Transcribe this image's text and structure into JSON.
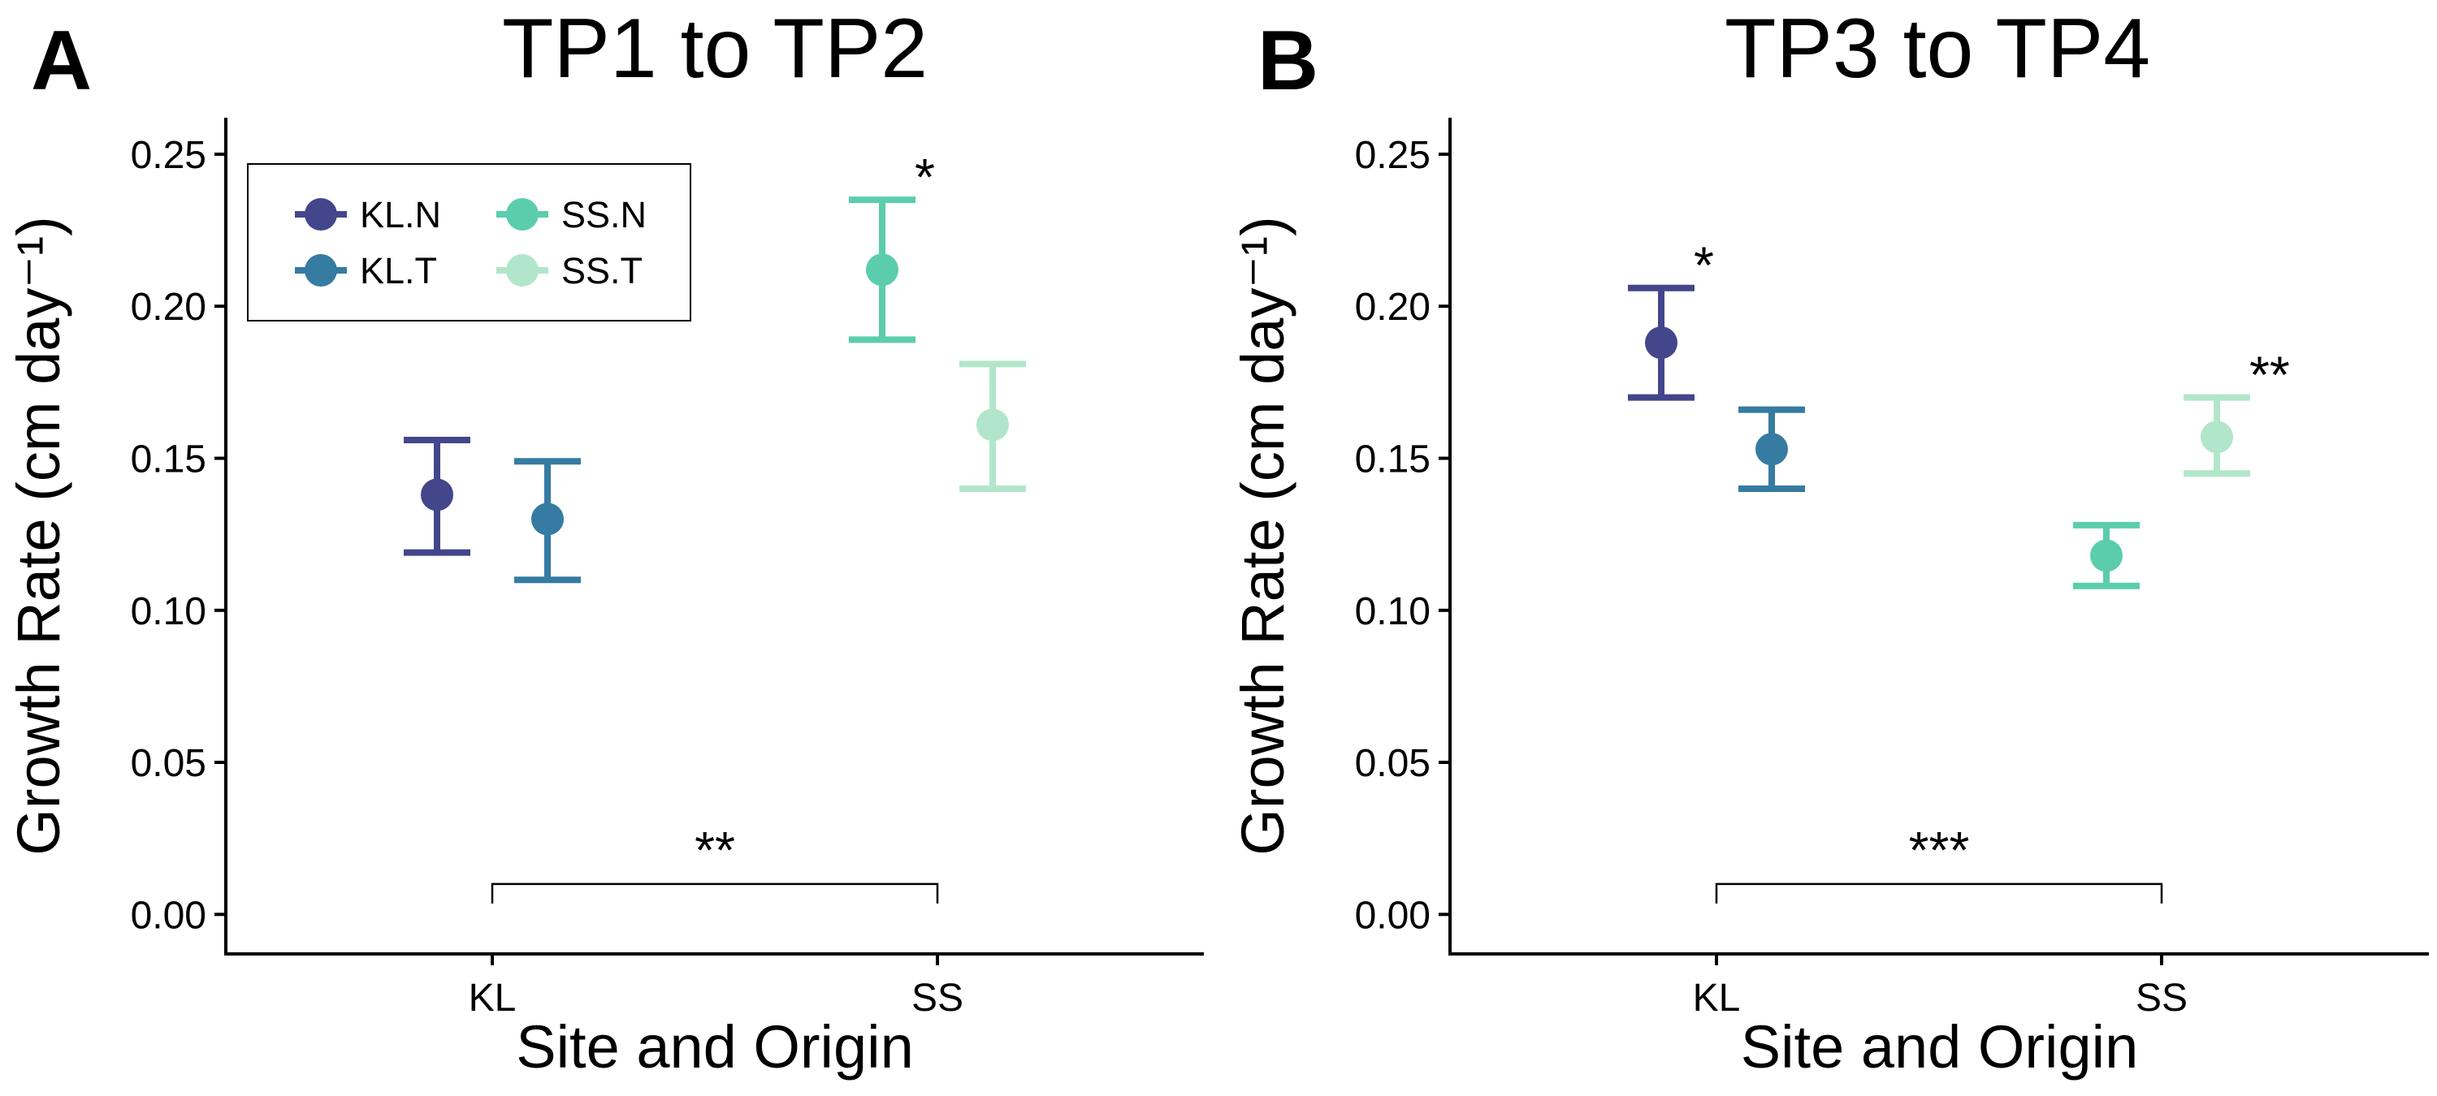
{
  "figure": {
    "panels": [
      {
        "letter": "A",
        "title": "TP1 to TP2"
      },
      {
        "letter": "B",
        "title": "TP3 to TP4"
      }
    ]
  },
  "legend": {
    "entries": [
      {
        "name": "KL.N",
        "color": "#43468B"
      },
      {
        "name": "KL.T",
        "color": "#357BA2"
      },
      {
        "name": "SS.N",
        "color": "#5BCDAD"
      },
      {
        "name": "SS.T",
        "color": "#B2E6CA"
      }
    ]
  },
  "chart_data": [
    {
      "type": "scatter",
      "subtype": "point-with-error-bars",
      "title": "TP1 to TP2",
      "xlabel": "Site and Origin",
      "ylabel": "Growth Rate (cm day⁻¹)",
      "categories": [
        "KL",
        "SS"
      ],
      "ylim": [
        -0.013,
        0.262
      ],
      "yticks": [
        "0.00",
        "0.05",
        "0.10",
        "0.15",
        "0.20",
        "0.25"
      ],
      "grid": false,
      "legend_position": "top-left",
      "series": [
        {
          "name": "KL.N",
          "color": "#43468B",
          "x": "KL",
          "offset": "left",
          "value": 0.138,
          "lower": 0.119,
          "upper": 0.156
        },
        {
          "name": "KL.T",
          "color": "#357BA2",
          "x": "KL",
          "offset": "right",
          "value": 0.13,
          "lower": 0.11,
          "upper": 0.149
        },
        {
          "name": "SS.N",
          "color": "#5BCDAD",
          "x": "SS",
          "offset": "left",
          "value": 0.212,
          "lower": 0.189,
          "upper": 0.235
        },
        {
          "name": "SS.T",
          "color": "#B2E6CA",
          "x": "SS",
          "offset": "right",
          "value": 0.161,
          "lower": 0.14,
          "upper": 0.181
        }
      ],
      "annotations": [
        {
          "text": "*",
          "near": "SS.N"
        },
        {
          "text": "**",
          "bracket": [
            "KL",
            "SS"
          ],
          "y": 0.01
        }
      ]
    },
    {
      "type": "scatter",
      "subtype": "point-with-error-bars",
      "title": "TP3 to TP4",
      "xlabel": "Site and Origin",
      "ylabel": "Growth Rate (cm day⁻¹)",
      "categories": [
        "KL",
        "SS"
      ],
      "ylim": [
        -0.013,
        0.262
      ],
      "yticks": [
        "0.00",
        "0.05",
        "0.10",
        "0.15",
        "0.20",
        "0.25"
      ],
      "grid": false,
      "series": [
        {
          "name": "KL.N",
          "color": "#43468B",
          "x": "KL",
          "offset": "left",
          "value": 0.188,
          "lower": 0.17,
          "upper": 0.206
        },
        {
          "name": "KL.T",
          "color": "#357BA2",
          "x": "KL",
          "offset": "right",
          "value": 0.153,
          "lower": 0.14,
          "upper": 0.166
        },
        {
          "name": "SS.N",
          "color": "#5BCDAD",
          "x": "SS",
          "offset": "left",
          "value": 0.118,
          "lower": 0.108,
          "upper": 0.128
        },
        {
          "name": "SS.T",
          "color": "#B2E6CA",
          "x": "SS",
          "offset": "right",
          "value": 0.157,
          "lower": 0.145,
          "upper": 0.17
        }
      ],
      "annotations": [
        {
          "text": "*",
          "near": "KL.N"
        },
        {
          "text": "**",
          "near": "SS.T"
        },
        {
          "text": "***",
          "bracket": [
            "KL",
            "SS"
          ],
          "y": 0.01
        }
      ]
    }
  ]
}
